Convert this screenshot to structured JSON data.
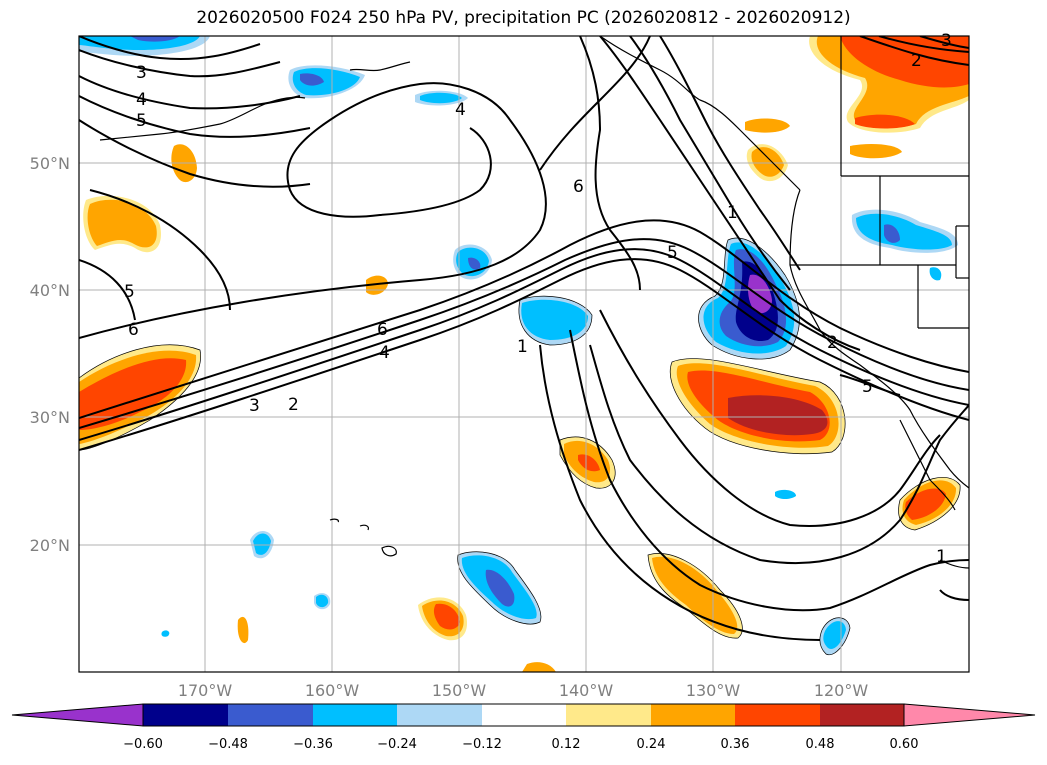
{
  "title": "2026020500 F024 250 hPa PV, precipitation PC (2026020812 - 2026020912)",
  "lat_labels": [
    "50°N",
    "40°N",
    "30°N",
    "20°N"
  ],
  "lon_labels": [
    "170°W",
    "160°W",
    "150°W",
    "140°W",
    "130°W",
    "120°W"
  ],
  "colorbar": {
    "ticks": [
      "−0.60",
      "−0.48",
      "−0.36",
      "−0.24",
      "−0.12",
      "0.12",
      "0.24",
      "0.36",
      "0.48",
      "0.60"
    ],
    "colors": [
      "#9932cc",
      "#00008b",
      "#3a5bcf",
      "#00bfff",
      "#add8f5",
      "#ffffff",
      "#ffe98a",
      "#ffa500",
      "#ff4500",
      "#b22222",
      "#ff88aa"
    ]
  },
  "contour_labels": [
    "3",
    "4",
    "5",
    "5",
    "6",
    "6",
    "4",
    "3",
    "2",
    "1",
    "6",
    "4",
    "1",
    "5",
    "2",
    "5",
    "2",
    "3",
    "1"
  ],
  "colors": {
    "positive": [
      "#ffe98a",
      "#ffa500",
      "#ff4500",
      "#b22222"
    ],
    "negative": [
      "#add8f5",
      "#00bfff",
      "#3a5bcf",
      "#00008b",
      "#9932cc"
    ]
  }
}
